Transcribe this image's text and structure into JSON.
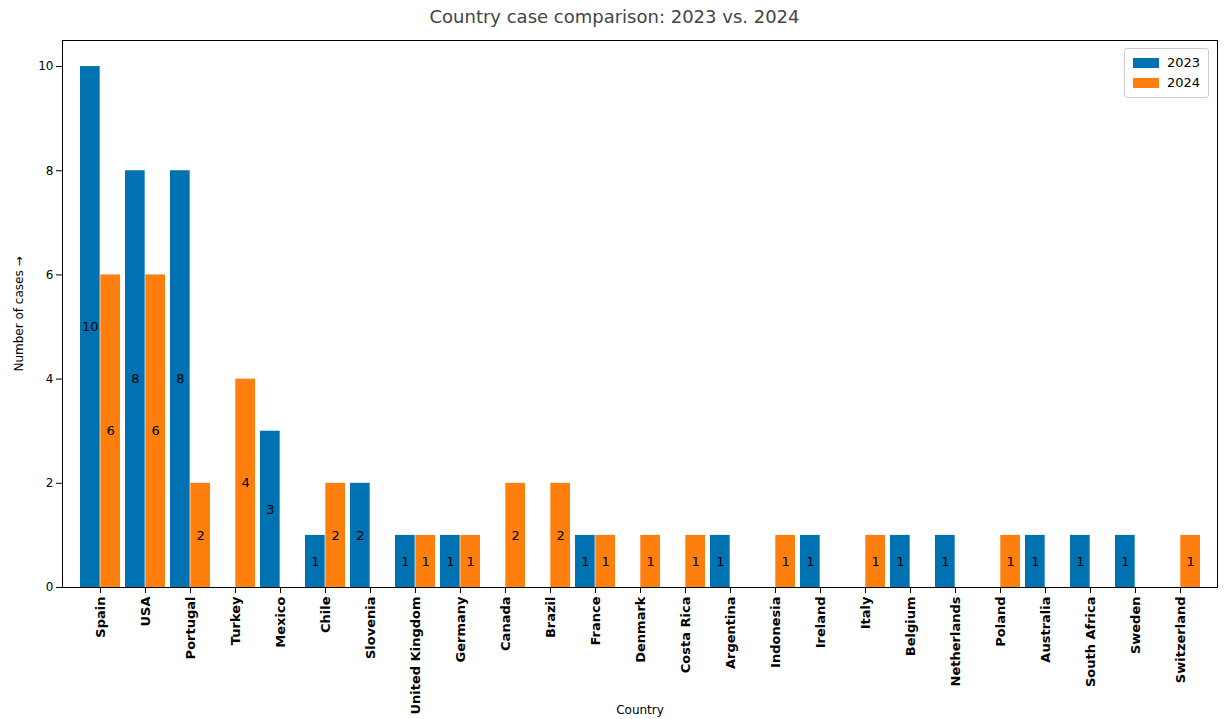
{
  "chart_data": {
    "type": "bar",
    "title": "Country case comparison: 2023 vs. 2024",
    "x_label": "Country",
    "y_label": "Number of cases",
    "categories": [
      "Spain",
      "USA",
      "Portugal",
      "Turkey",
      "Mexico",
      "Chile",
      "Slovenia",
      "United Kingdom",
      "Germany",
      "Canada",
      "Brazil",
      "France",
      "Denmark",
      "Costa Rica",
      "Argentina",
      "Indonesia",
      "Ireland",
      "Italy",
      "Belgium",
      "Netherlands",
      "Poland",
      "Australia",
      "South Africa",
      "Sweden",
      "Switzerland"
    ],
    "series": [
      {
        "name": "2023",
        "color": "#0072b2",
        "values": [
          10,
          8,
          8,
          null,
          3,
          1,
          2,
          1,
          1,
          null,
          null,
          1,
          null,
          null,
          1,
          null,
          1,
          null,
          1,
          1,
          null,
          1,
          1,
          1,
          null
        ]
      },
      {
        "name": "2024",
        "color": "#ff7f0e",
        "values": [
          6,
          6,
          2,
          4,
          null,
          2,
          null,
          1,
          1,
          2,
          2,
          1,
          1,
          1,
          null,
          1,
          null,
          1,
          null,
          null,
          1,
          null,
          null,
          null,
          1
        ]
      }
    ],
    "ylim": [
      0,
      10.5
    ],
    "yticks": [
      0,
      2,
      4,
      6,
      8,
      10
    ],
    "grid": false,
    "legend": "upper right",
    "data_labels": true
  }
}
